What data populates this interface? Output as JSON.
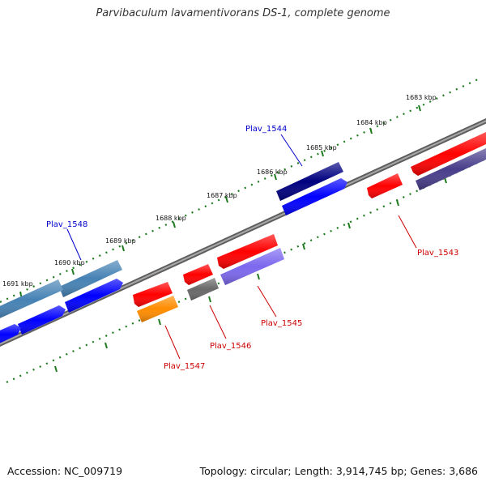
{
  "title": "Parvibaculum lavamentivorans DS-1, complete genome",
  "footer": {
    "accession": "Accession: NC_009719",
    "summary": "Topology: circular; Length: 3,914,745 bp; Genes: 3,686"
  },
  "ruler": {
    "unit": "kbp",
    "ticks": [
      {
        "label": "1683 kbp",
        "kbp": 1683
      },
      {
        "label": "1684 kbp",
        "kbp": 1684
      },
      {
        "label": "1685 kbp",
        "kbp": 1685
      },
      {
        "label": "1686 kbp",
        "kbp": 1686
      },
      {
        "label": "1687 kbp",
        "kbp": 1687
      },
      {
        "label": "1688 kbp",
        "kbp": 1688
      },
      {
        "label": "1689 kbp",
        "kbp": 1689
      },
      {
        "label": "1690 kbp",
        "kbp": 1690
      },
      {
        "label": "1691 kbp",
        "kbp": 1691
      }
    ]
  },
  "gene_labels": [
    {
      "name": "Plav_1544",
      "color": "#0000cc"
    },
    {
      "name": "Plav_1548",
      "color": "#0000cc"
    },
    {
      "name": "Plav_1543",
      "color": "#cc0000"
    },
    {
      "name": "Plav_1545",
      "color": "#cc0000"
    },
    {
      "name": "Plav_1546",
      "color": "#cc0000"
    },
    {
      "name": "Plav_1547",
      "color": "#cc0000"
    }
  ],
  "colors": {
    "backbone": "#7a7a7a",
    "tick": "#1e7a1e",
    "gene_red": "#ff0000",
    "gene_blue": "#0000ff",
    "gene_navy": "#000080",
    "gene_steel": "#4682b4",
    "gene_slate": "#7b68ee",
    "gene_darkslate": "#483d8b",
    "gene_gray": "#696969",
    "gene_orange": "#ff8c00"
  }
}
